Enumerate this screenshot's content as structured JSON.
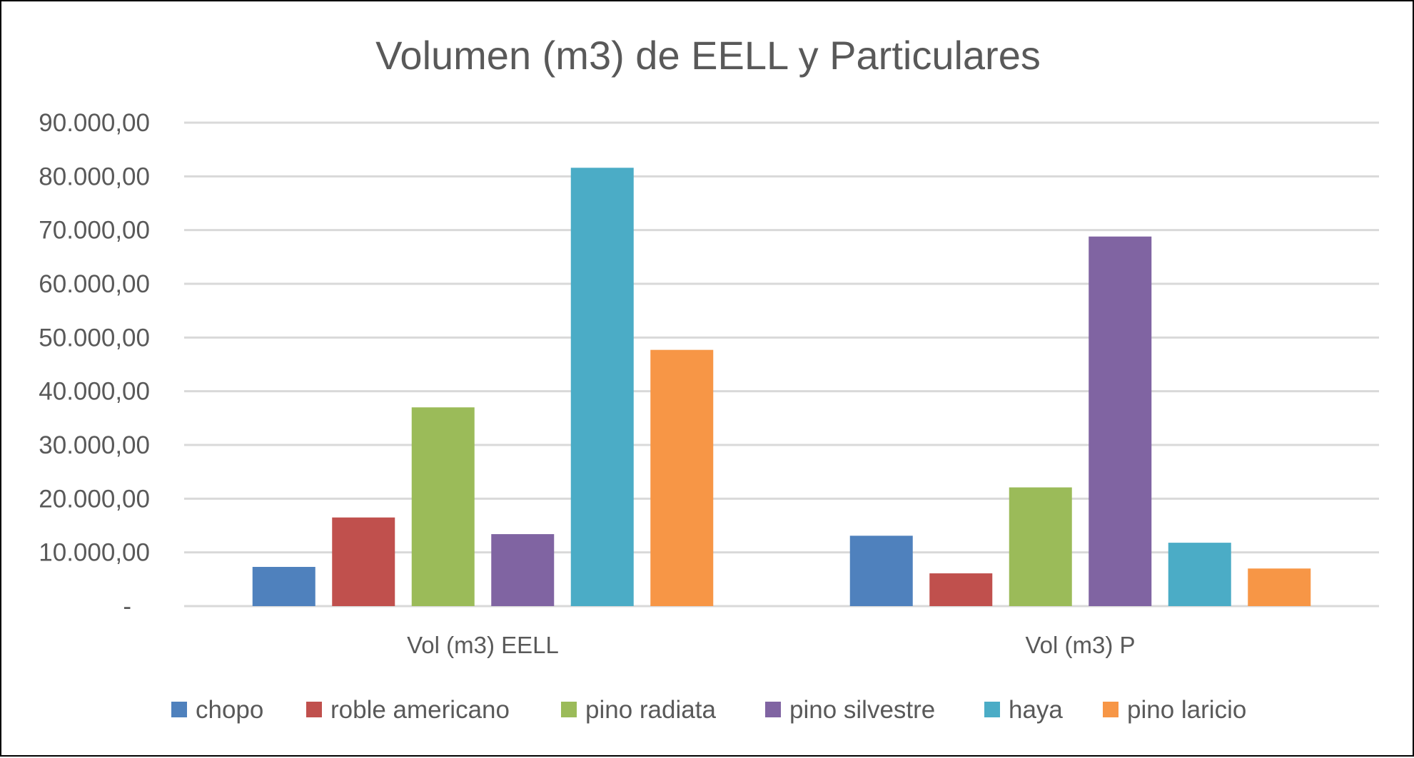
{
  "chart_data": {
    "type": "bar",
    "title": "Volumen (m3) de EELL y Particulares",
    "xlabel": "",
    "ylabel": "",
    "ylim": [
      0,
      90000
    ],
    "y_ticks": [
      {
        "value": 0,
        "label": "-"
      },
      {
        "value": 10000,
        "label": "10.000,00"
      },
      {
        "value": 20000,
        "label": "20.000,00"
      },
      {
        "value": 30000,
        "label": "30.000,00"
      },
      {
        "value": 40000,
        "label": "40.000,00"
      },
      {
        "value": 50000,
        "label": "50.000,00"
      },
      {
        "value": 60000,
        "label": "60.000,00"
      },
      {
        "value": 70000,
        "label": "70.000,00"
      },
      {
        "value": 80000,
        "label": "80.000,00"
      },
      {
        "value": 90000,
        "label": "90.000,00"
      }
    ],
    "grid": true,
    "legend_position": "bottom",
    "categories": [
      "Vol (m3) EELL",
      "Vol (m3) P"
    ],
    "series": [
      {
        "name": "chopo",
        "color": "#4F81BD",
        "values": [
          7300,
          13100
        ]
      },
      {
        "name": "roble americano",
        "color": "#C0504D",
        "values": [
          16500,
          6100
        ]
      },
      {
        "name": "pino radiata",
        "color": "#9BBB59",
        "values": [
          37000,
          22100
        ]
      },
      {
        "name": "pino silvestre",
        "color": "#8064A2",
        "values": [
          13400,
          68800
        ]
      },
      {
        "name": "haya",
        "color": "#4BACC6",
        "values": [
          81600,
          11800
        ]
      },
      {
        "name": "pino laricio",
        "color": "#F79646",
        "values": [
          47700,
          7000
        ]
      }
    ]
  }
}
